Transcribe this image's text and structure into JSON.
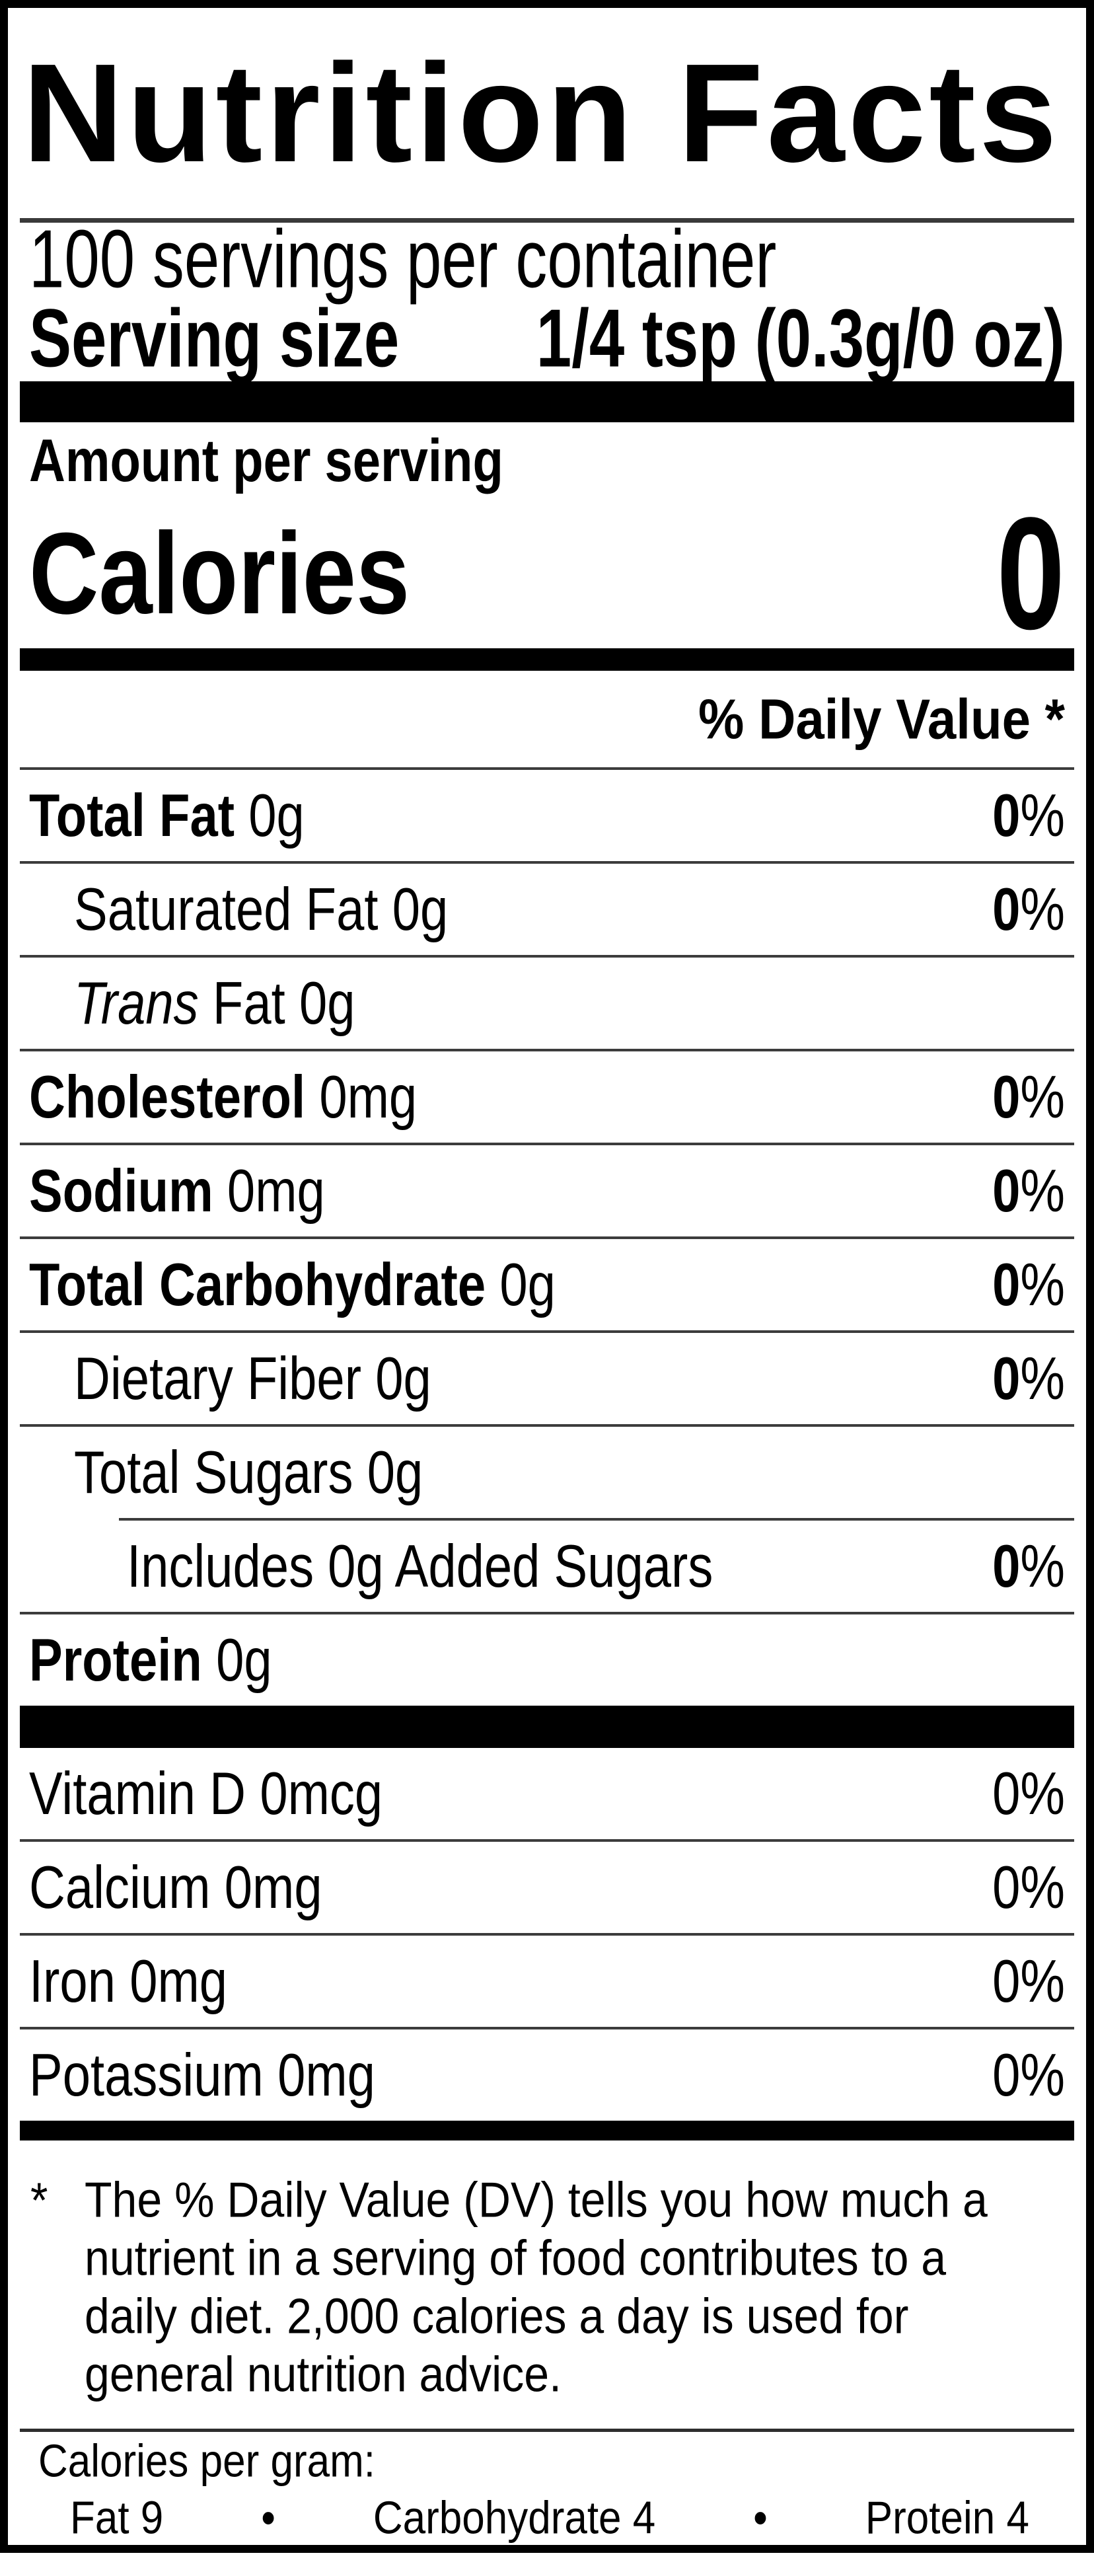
{
  "label": {
    "title": "Nutrition Facts",
    "servings_per_container": "100 servings per container",
    "serving_size_label": "Serving size",
    "serving_size_value": "1/4 tsp (0.3g/0 oz)",
    "amount_per_serving": "Amount per serving",
    "calories_label": "Calories",
    "calories_value": "0",
    "daily_value_header": "% Daily Value *"
  },
  "nutrients": [
    {
      "name": "Total Fat",
      "amount": "0g",
      "dv_value": "0",
      "dv_unit": "%"
    },
    {
      "name": "Saturated Fat",
      "amount": "0g",
      "dv_value": "0",
      "dv_unit": "%"
    },
    {
      "name_italic": "Trans",
      "name_rest": "Fat",
      "amount": "0g"
    },
    {
      "name": "Cholesterol",
      "amount": "0mg",
      "dv_value": "0",
      "dv_unit": "%"
    },
    {
      "name": "Sodium",
      "amount": "0mg",
      "dv_value": "0",
      "dv_unit": "%"
    },
    {
      "name": "Total Carbohydrate",
      "amount": "0g",
      "dv_value": "0",
      "dv_unit": "%"
    },
    {
      "name": "Dietary Fiber",
      "amount": "0g",
      "dv_value": "0",
      "dv_unit": "%"
    },
    {
      "name": "Total Sugars",
      "amount": "0g"
    },
    {
      "name": "Includes 0g Added Sugars",
      "dv_value": "0",
      "dv_unit": "%"
    },
    {
      "name": "Protein",
      "amount": "0g"
    }
  ],
  "micronutrients": [
    {
      "name": "Vitamin D",
      "amount": "0mcg",
      "dv_value": "0",
      "dv_unit": "%"
    },
    {
      "name": "Calcium",
      "amount": "0mg",
      "dv_value": "0",
      "dv_unit": "%"
    },
    {
      "name": "Iron",
      "amount": "0mg",
      "dv_value": "0",
      "dv_unit": "%"
    },
    {
      "name": "Potassium",
      "amount": "0mg",
      "dv_value": "0",
      "dv_unit": "%"
    }
  ],
  "footnote": {
    "marker": "*",
    "text": "The % Daily Value (DV) tells you how much a nutrient in a serving of food contributes to a daily diet. 2,000 calories a day is used for general nutrition advice."
  },
  "calories_per_gram": {
    "title": "Calories per gram:",
    "separator": "•",
    "items": [
      "Fat 9",
      "Carbohydrate 4",
      "Protein 4"
    ]
  }
}
